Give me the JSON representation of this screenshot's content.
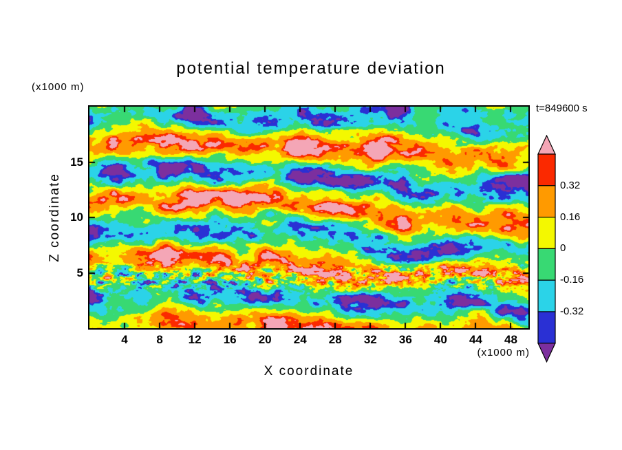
{
  "page": {
    "background": "#ffffff"
  },
  "header": {
    "title": "potential temperature deviation",
    "time_label": "t=849600 s"
  },
  "axes": {
    "x": {
      "label": "X coordinate",
      "unit": "(x1000 m)",
      "ticks": [
        4,
        8,
        12,
        16,
        20,
        24,
        28,
        32,
        36,
        40,
        44,
        48
      ],
      "range": [
        0,
        50
      ]
    },
    "z": {
      "label": "Z coordinate",
      "unit": "(x1000 m)",
      "ticks": [
        5,
        10,
        15
      ],
      "range": [
        0,
        20
      ]
    }
  },
  "colorbar": {
    "labels": [
      "0.32",
      "0.16",
      "0",
      "-0.16",
      "-0.32"
    ],
    "segments_top_to_bottom": [
      "#fb2900",
      "#ff9a00",
      "#f4f800",
      "#38d973",
      "#2bd3e8",
      "#2a30d4"
    ],
    "arrow_top": "#f4a6b6",
    "arrow_bottom": "#7c2f9e"
  },
  "chart_data": {
    "type": "heatmap",
    "title": "potential temperature deviation",
    "xlabel": "X coordinate (x1000 m)",
    "ylabel": "Z coordinate (x1000 m)",
    "time_label": "t=849600 s",
    "time_seconds": 849600,
    "x_range": [
      0,
      50
    ],
    "z_range": [
      0,
      20
    ],
    "x_ticks": [
      4,
      8,
      12,
      16,
      20,
      24,
      28,
      32,
      36,
      40,
      44,
      48
    ],
    "z_ticks": [
      5,
      10,
      15
    ],
    "labeled_levels": [
      0.32,
      0.16,
      0,
      -0.16,
      -0.32
    ],
    "levels": [
      -0.4,
      -0.32,
      -0.16,
      0,
      0.16,
      0.32,
      0.4
    ],
    "level_colors_low_to_high": [
      "#7c2f9e",
      "#2a30d4",
      "#2bd3e8",
      "#38d973",
      "#f4f800",
      "#ff9a00",
      "#fb2900",
      "#f4a6b6"
    ],
    "legend_position": "right",
    "grid": false,
    "field": {
      "description": "turbulent potential-temperature deviation field; layered horizontal streaks, fine speckled layer near z=4.5 km, procedurally approximated",
      "seed": 1337,
      "noise_amp": 0.62,
      "noise_scale_x": 0.34,
      "noise_scale_z": 0.75,
      "band_amp": 0.42,
      "band_period_km": 5.6,
      "band_center_km": 10.6,
      "fine_amp": 0.85,
      "fine_center_km": 4.6,
      "fine_width_km": 1.15,
      "output_scale": 0.72
    }
  }
}
